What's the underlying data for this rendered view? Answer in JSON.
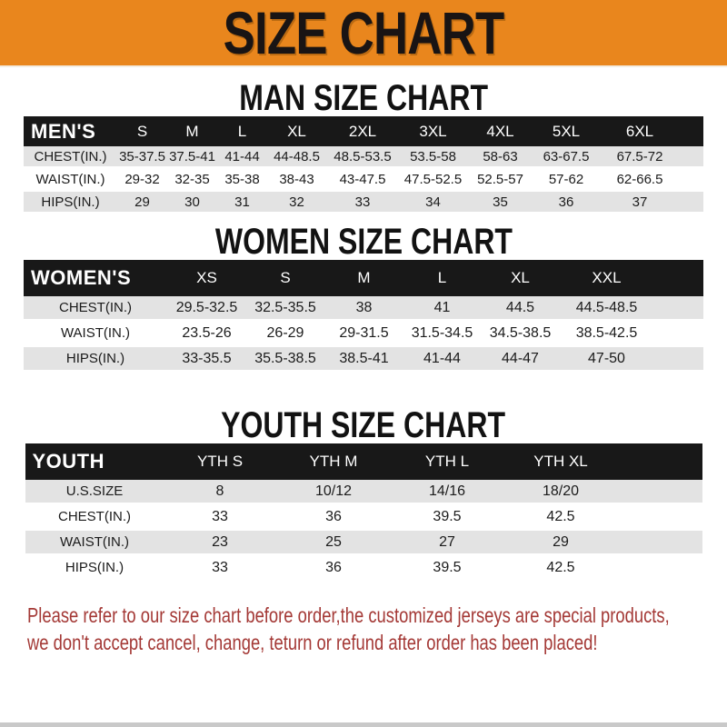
{
  "banner": {
    "title": "SIZE CHART"
  },
  "sections": [
    {
      "title": "MAN SIZE CHART",
      "header_label": "MEN'S",
      "columns": [
        "S",
        "M",
        "L",
        "XL",
        "2XL",
        "3XL",
        "4XL",
        "5XL",
        "6XL"
      ],
      "rows": [
        {
          "label": "CHEST(IN.)",
          "values": [
            "35-37.5",
            "37.5-41",
            "41-44",
            "44-48.5",
            "48.5-53.5",
            "53.5-58",
            "58-63",
            "63-67.5",
            "67.5-72"
          ]
        },
        {
          "label": "WAIST(IN.)",
          "values": [
            "29-32",
            "32-35",
            "35-38",
            "38-43",
            "43-47.5",
            "47.5-52.5",
            "52.5-57",
            "57-62",
            "62-66.5"
          ]
        },
        {
          "label": "HIPS(IN.)",
          "values": [
            "29",
            "30",
            "31",
            "32",
            "33",
            "34",
            "35",
            "36",
            "37"
          ]
        }
      ]
    },
    {
      "title": "WOMEN SIZE CHART",
      "header_label": "WOMEN'S",
      "columns": [
        "XS",
        "S",
        "M",
        "L",
        "XL",
        "XXL"
      ],
      "rows": [
        {
          "label": "CHEST(IN.)",
          "values": [
            "29.5-32.5",
            "32.5-35.5",
            "38",
            "41",
            "44.5",
            "44.5-48.5"
          ]
        },
        {
          "label": "WAIST(IN.)",
          "values": [
            "23.5-26",
            "26-29",
            "29-31.5",
            "31.5-34.5",
            "34.5-38.5",
            "38.5-42.5"
          ]
        },
        {
          "label": "HIPS(IN.)",
          "values": [
            "33-35.5",
            "35.5-38.5",
            "38.5-41",
            "41-44",
            "44-47",
            "47-50"
          ]
        }
      ]
    },
    {
      "title": "YOUTH SIZE CHART",
      "header_label": "YOUTH",
      "columns": [
        "YTH S",
        "YTH M",
        "YTH L",
        "YTH XL"
      ],
      "rows": [
        {
          "label": "U.S.SIZE",
          "values": [
            "8",
            "10/12",
            "14/16",
            "18/20"
          ]
        },
        {
          "label": "CHEST(IN.)",
          "values": [
            "33",
            "36",
            "39.5",
            "42.5"
          ]
        },
        {
          "label": "WAIST(IN.)",
          "values": [
            "23",
            "25",
            "27",
            "29"
          ]
        },
        {
          "label": "HIPS(IN.)",
          "values": [
            "33",
            "36",
            "39.5",
            "42.5"
          ]
        }
      ]
    }
  ],
  "footer": {
    "line1": "Please refer to our size chart before order,the customized jerseys are special products,",
    "line2": "we don't accept cancel, change, teturn or refund after order has been placed!"
  },
  "colors": {
    "banner_bg": "#E9861D",
    "header_bar": "#181818",
    "row_stripe": "#E3E3E3",
    "footer_text": "#A43936",
    "bottom_bar": "#C9C9C9"
  }
}
